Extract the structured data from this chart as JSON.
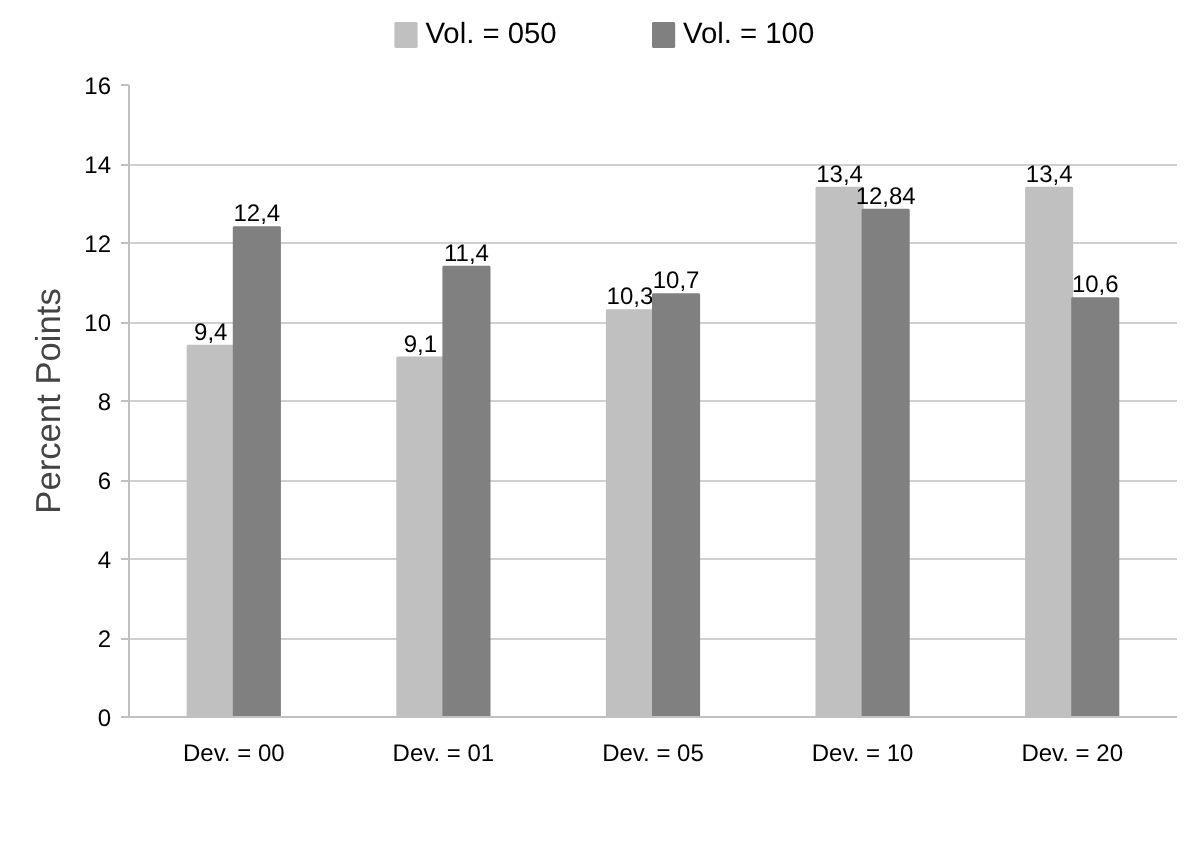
{
  "chart_data": {
    "type": "bar",
    "ylabel": "Percent Points",
    "categories": [
      "Dev. = 00",
      "Dev. = 01",
      "Dev. = 05",
      "Dev. = 10",
      "Dev. = 20"
    ],
    "series": [
      {
        "name": "Vol. = 050",
        "color": "#c0c0c0",
        "values": [
          9.4,
          9.1,
          10.3,
          13.4,
          13.4
        ],
        "value_labels": [
          "9,4",
          "9,1",
          "10,3",
          "13,4",
          "13,4"
        ]
      },
      {
        "name": "Vol. = 100",
        "color": "#808080",
        "values": [
          12.4,
          11.4,
          10.7,
          12.84,
          10.6
        ],
        "value_labels": [
          "12,4",
          "11,4",
          "10,7",
          "12,84",
          "10,6"
        ]
      }
    ],
    "ylim": [
      0,
      16
    ],
    "yticks": [
      0,
      2,
      4,
      6,
      8,
      10,
      12,
      14,
      16
    ],
    "grid": "y",
    "legend": "top"
  }
}
